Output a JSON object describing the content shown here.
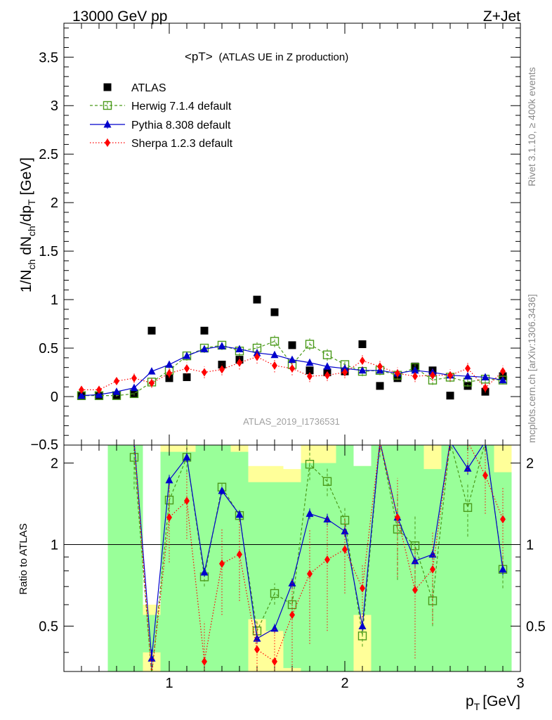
{
  "header": {
    "left": "13000 GeV pp",
    "right": "Z+Jet"
  },
  "side_labels": {
    "rivet": "Rivet 3.1.10, ≥ 400k events",
    "mcplots": "mcplots.cern.ch [arXiv:1306.3436]"
  },
  "chart_data": {
    "type": "scatter",
    "title_main": "<pT>",
    "title_sub": "(ATLAS UE in Z production)",
    "watermark": "ATLAS_2019_I1736531",
    "xlabel": "p",
    "xlabel_sub": "T",
    "xlabel_unit": "[GeV]",
    "ylabel": "1/N_ch dN_ch/dp_T [GeV]",
    "ratio_ylabel": "Ratio to ATLAS",
    "xlim": [
      0.4,
      3.0
    ],
    "ylim": [
      -0.5,
      3.85
    ],
    "ratio_ylim": [
      0.34,
      2.33
    ],
    "main_yticks": [
      "0",
      "0.5",
      "1",
      "1.5",
      "2",
      "2.5",
      "3",
      "3.5"
    ],
    "main_ytick_values": [
      0,
      0.5,
      1,
      1.5,
      2,
      2.5,
      3,
      3.5
    ],
    "main_edge_tick": "0.5",
    "ratio_yticks": [
      "0.5",
      "1",
      "2"
    ],
    "ratio_ytick_values": [
      0.5,
      1,
      2
    ],
    "xticks": [
      "1",
      "2",
      "3"
    ],
    "xtick_values": [
      1,
      2,
      3
    ],
    "x": [
      0.5,
      0.6,
      0.7,
      0.8,
      0.9,
      1.0,
      1.1,
      1.2,
      1.3,
      1.4,
      1.5,
      1.6,
      1.7,
      1.8,
      1.9,
      2.0,
      2.1,
      2.2,
      2.3,
      2.4,
      2.5,
      2.6,
      2.7,
      2.8,
      2.9
    ],
    "series": [
      {
        "name": "ATLAS",
        "style": "data",
        "color": "#000000",
        "values": [
          0.005,
          0.005,
          0.01,
          0.03,
          0.68,
          0.19,
          0.2,
          0.68,
          0.33,
          0.38,
          1.0,
          0.87,
          0.53,
          0.27,
          0.25,
          0.26,
          0.54,
          0.11,
          0.19,
          0.31,
          0.27,
          0.01,
          0.11,
          0.05,
          0.21
        ]
      },
      {
        "name": "Herwig 7.1.4 default",
        "style": "herwig",
        "color": "#4a9a1a",
        "values": [
          0.01,
          0.01,
          0.01,
          0.03,
          0.15,
          0.27,
          0.42,
          0.5,
          0.53,
          0.47,
          0.5,
          0.57,
          0.33,
          0.54,
          0.43,
          0.33,
          0.26,
          0.27,
          0.22,
          0.3,
          0.17,
          0.2,
          0.15,
          0.18,
          0.17
        ],
        "errors": [
          0.01,
          0.01,
          0.01,
          0.02,
          0.03,
          0.04,
          0.05,
          0.05,
          0.05,
          0.05,
          0.06,
          0.06,
          0.06,
          0.06,
          0.06,
          0.05,
          0.05,
          0.05,
          0.05,
          0.05,
          0.05,
          0.05,
          0.05,
          0.04,
          0.04
        ]
      },
      {
        "name": "Pythia 8.308 default",
        "style": "pythia",
        "color": "#0000cc",
        "values": [
          0.01,
          0.02,
          0.05,
          0.09,
          0.26,
          0.33,
          0.42,
          0.49,
          0.52,
          0.49,
          0.45,
          0.43,
          0.38,
          0.35,
          0.31,
          0.29,
          0.27,
          0.27,
          0.24,
          0.27,
          0.25,
          0.22,
          0.21,
          0.2,
          0.17
        ],
        "errors": [
          0.005,
          0.005,
          0.01,
          0.01,
          0.02,
          0.02,
          0.02,
          0.02,
          0.02,
          0.02,
          0.02,
          0.02,
          0.02,
          0.02,
          0.02,
          0.02,
          0.02,
          0.02,
          0.02,
          0.02,
          0.02,
          0.02,
          0.02,
          0.02,
          0.02
        ]
      },
      {
        "name": "Sherpa 1.2.3 default",
        "style": "sherpa",
        "color": "#ff0000",
        "values": [
          0.07,
          0.07,
          0.16,
          0.19,
          0.14,
          0.24,
          0.29,
          0.25,
          0.28,
          0.35,
          0.41,
          0.32,
          0.29,
          0.21,
          0.22,
          0.25,
          0.37,
          0.31,
          0.24,
          0.21,
          0.22,
          0.22,
          0.29,
          0.09,
          0.26
        ],
        "errors": [
          0.03,
          0.03,
          0.04,
          0.05,
          0.05,
          0.05,
          0.06,
          0.06,
          0.06,
          0.07,
          0.07,
          0.07,
          0.07,
          0.06,
          0.06,
          0.06,
          0.07,
          0.07,
          0.06,
          0.06,
          0.06,
          0.06,
          0.07,
          0.05,
          0.06
        ]
      }
    ],
    "ratio_series": [
      {
        "name": "Herwig 7.1.4 default",
        "values": [
          null,
          null,
          null,
          2.1,
          0.22,
          1.46,
          2.1,
          0.76,
          1.63,
          1.28,
          0.48,
          0.66,
          0.6,
          1.98,
          1.71,
          1.23,
          0.46,
          2.4,
          1.14,
          0.99,
          0.62,
          20,
          1.37,
          3.6,
          0.81
        ],
        "errors": [
          0,
          0,
          0,
          0.5,
          0.06,
          0.2,
          0.25,
          0.06,
          0.06,
          0.06,
          0.05,
          0.06,
          0.05,
          0.25,
          0.2,
          0.15,
          0.04,
          0.3,
          0.4,
          0.3,
          0.12,
          0,
          0.3,
          0.8,
          0.12
        ]
      },
      {
        "name": "Pythia 8.308 default",
        "values": [
          null,
          null,
          null,
          3.0,
          0.38,
          1.73,
          2.1,
          0.79,
          1.58,
          1.29,
          0.45,
          0.49,
          0.72,
          1.3,
          1.24,
          1.12,
          0.5,
          2.45,
          1.26,
          0.87,
          0.92,
          22,
          1.91,
          4.0,
          0.81
        ],
        "errors": [
          0,
          0,
          0,
          0.2,
          0.03,
          0.08,
          0.08,
          0.03,
          0.05,
          0.05,
          0.02,
          0.02,
          0.03,
          0.06,
          0.06,
          0.05,
          0.02,
          0.1,
          0.06,
          0.04,
          0.04,
          0,
          0.1,
          0.3,
          0.04
        ]
      },
      {
        "name": "Sherpa 1.2.3 default",
        "values": [
          null,
          null,
          null,
          6.3,
          0.21,
          1.26,
          1.45,
          0.37,
          0.85,
          0.92,
          0.41,
          0.37,
          0.55,
          0.78,
          0.88,
          0.96,
          0.69,
          2.82,
          1.26,
          0.68,
          0.81,
          22,
          2.64,
          1.8,
          1.24
        ],
        "errors": [
          0,
          0,
          0,
          1.5,
          0.08,
          0.4,
          0.4,
          0.15,
          0.3,
          0.3,
          0.1,
          0.12,
          0.2,
          0.35,
          0.4,
          0.3,
          0.15,
          0.6,
          0.5,
          0.3,
          0.3,
          0,
          0.8,
          0.5,
          0.4
        ]
      }
    ],
    "bands": [
      {
        "x0": 0.85,
        "x1": 0.95,
        "yellow": [
          0.3,
          0.6
        ],
        "green": [
          0.4,
          0.55
        ]
      },
      {
        "x0": 0.95,
        "x1": 1.05,
        "yellow": [
          0.3,
          2.33
        ],
        "green": [
          0.3,
          2.2
        ]
      },
      {
        "x0": 1.05,
        "x1": 1.15,
        "yellow": [
          0.3,
          2.33
        ],
        "green": [
          0.3,
          2.2
        ]
      },
      {
        "x0": 1.15,
        "x1": 1.25,
        "yellow": [
          0.3,
          2.33
        ],
        "green": [
          0.3,
          2.33
        ]
      },
      {
        "x0": 1.25,
        "x1": 1.35,
        "yellow": [
          0.3,
          2.33
        ],
        "green": [
          0.3,
          2.33
        ]
      },
      {
        "x0": 1.35,
        "x1": 1.45,
        "yellow": [
          0.3,
          2.33
        ],
        "green": [
          0.3,
          2.2
        ]
      },
      {
        "x0": 1.45,
        "x1": 1.55,
        "yellow": [
          0.3,
          1.95
        ],
        "green": [
          0.53,
          1.7
        ]
      },
      {
        "x0": 1.55,
        "x1": 1.65,
        "yellow": [
          0.3,
          1.95
        ],
        "green": [
          0.48,
          1.7
        ]
      },
      {
        "x0": 1.65,
        "x1": 1.75,
        "yellow": [
          0.3,
          1.9
        ],
        "green": [
          0.35,
          1.7
        ]
      },
      {
        "x0": 1.75,
        "x1": 1.85,
        "yellow": [
          0.3,
          2.33
        ],
        "green": [
          0.3,
          2.0
        ]
      },
      {
        "x0": 1.85,
        "x1": 1.95,
        "yellow": [
          0.3,
          2.33
        ],
        "green": [
          0.3,
          2.0
        ]
      },
      {
        "x0": 1.95,
        "x1": 2.05,
        "yellow": [
          0.3,
          2.33
        ],
        "green": [
          0.3,
          2.33
        ]
      },
      {
        "x0": 2.05,
        "x1": 2.15,
        "yellow": [
          0.3,
          1.95
        ],
        "green": [
          0.55,
          1.95
        ]
      },
      {
        "x0": 2.15,
        "x1": 2.25,
        "yellow": [
          0.3,
          2.33
        ],
        "green": [
          0.3,
          2.33
        ]
      },
      {
        "x0": 2.25,
        "x1": 2.35,
        "yellow": [
          0.3,
          2.33
        ],
        "green": [
          0.3,
          2.33
        ]
      },
      {
        "x0": 2.35,
        "x1": 2.45,
        "yellow": [
          0.3,
          2.33
        ],
        "green": [
          0.3,
          2.33
        ]
      },
      {
        "x0": 2.45,
        "x1": 2.55,
        "yellow": [
          0.3,
          2.33
        ],
        "green": [
          0.3,
          1.9
        ]
      },
      {
        "x0": 2.55,
        "x1": 2.65,
        "yellow": [
          0.3,
          2.33
        ],
        "green": [
          0.3,
          2.33
        ]
      },
      {
        "x0": 2.65,
        "x1": 2.75,
        "yellow": [
          0.3,
          2.33
        ],
        "green": [
          0.3,
          2.33
        ]
      },
      {
        "x0": 2.75,
        "x1": 2.85,
        "yellow": [
          0.3,
          2.33
        ],
        "green": [
          0.3,
          2.33
        ]
      },
      {
        "x0": 2.85,
        "x1": 2.95,
        "yellow": [
          0.3,
          2.33
        ],
        "green": [
          0.3,
          1.85
        ]
      },
      {
        "x0": 0.65,
        "x1": 0.85,
        "yellow": [
          0.3,
          2.33
        ],
        "green": [
          0.3,
          2.33
        ]
      }
    ]
  }
}
